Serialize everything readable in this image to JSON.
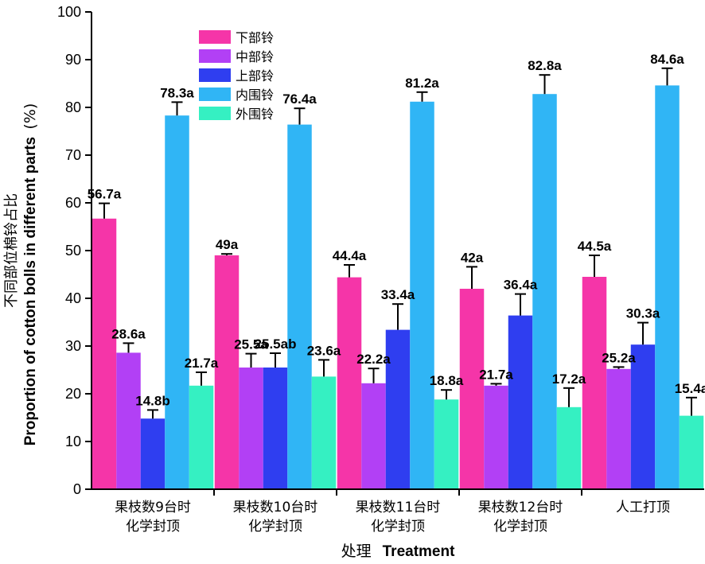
{
  "chart_data": {
    "type": "bar",
    "title": "",
    "xlabel_cn": "处理",
    "xlabel_en": "Treatment",
    "ylabel_cn": "不同部位棉铃占比",
    "ylabel_en": "Proportion of cotton bolls in different parts",
    "ylabel_unit": "(%)",
    "ylim": [
      0,
      100
    ],
    "yticks": [
      "0",
      "10",
      "20",
      "30",
      "40",
      "50",
      "60",
      "70",
      "80",
      "90",
      "100"
    ],
    "grid": false,
    "legend_position": "top-left",
    "categories": [
      [
        "果枝数9台时",
        "化学封顶"
      ],
      [
        "果枝数10台时",
        "化学封顶"
      ],
      [
        "果枝数11台时",
        "化学封顶"
      ],
      [
        "果枝数12台时",
        "化学封顶"
      ],
      [
        "人工打顶"
      ]
    ],
    "series": [
      {
        "name": "下部铃",
        "color": "#f535a8",
        "values": [
          56.7,
          49,
          44.4,
          42,
          44.5
        ],
        "errors": [
          3.2,
          0.3,
          2.6,
          4.6,
          4.5
        ],
        "labels": [
          "56.7a",
          "49a",
          "44.4a",
          "42a",
          "44.5a"
        ]
      },
      {
        "name": "中部铃",
        "color": "#b240f5",
        "values": [
          28.6,
          25.5,
          22.2,
          21.7,
          25.2
        ],
        "errors": [
          2.0,
          2.9,
          3.1,
          0.4,
          0.4
        ],
        "labels": [
          "28.6a",
          "25.5a",
          "22.2a",
          "21.7a",
          "25.2a"
        ]
      },
      {
        "name": "上部铃",
        "color": "#2f3ef0",
        "values": [
          14.8,
          25.5,
          33.4,
          36.4,
          30.3
        ],
        "errors": [
          1.8,
          3.0,
          5.4,
          4.5,
          4.6
        ],
        "labels": [
          "14.8b",
          "25.5ab",
          "33.4a",
          "36.4a",
          "30.3a"
        ]
      },
      {
        "name": "内围铃",
        "color": "#30b5f5",
        "values": [
          78.3,
          76.4,
          81.2,
          82.8,
          84.6
        ],
        "errors": [
          2.8,
          3.4,
          2.0,
          4.0,
          3.6
        ],
        "labels": [
          "78.3a",
          "76.4a",
          "81.2a",
          "82.8a",
          "84.6a"
        ]
      },
      {
        "name": "外围铃",
        "color": "#35f0c2",
        "values": [
          21.7,
          23.6,
          18.8,
          17.2,
          15.4
        ],
        "errors": [
          2.8,
          3.5,
          2.0,
          4.0,
          3.8
        ],
        "labels": [
          "21.7a",
          "23.6a",
          "18.8a",
          "17.2a",
          "15.4a"
        ]
      }
    ]
  }
}
